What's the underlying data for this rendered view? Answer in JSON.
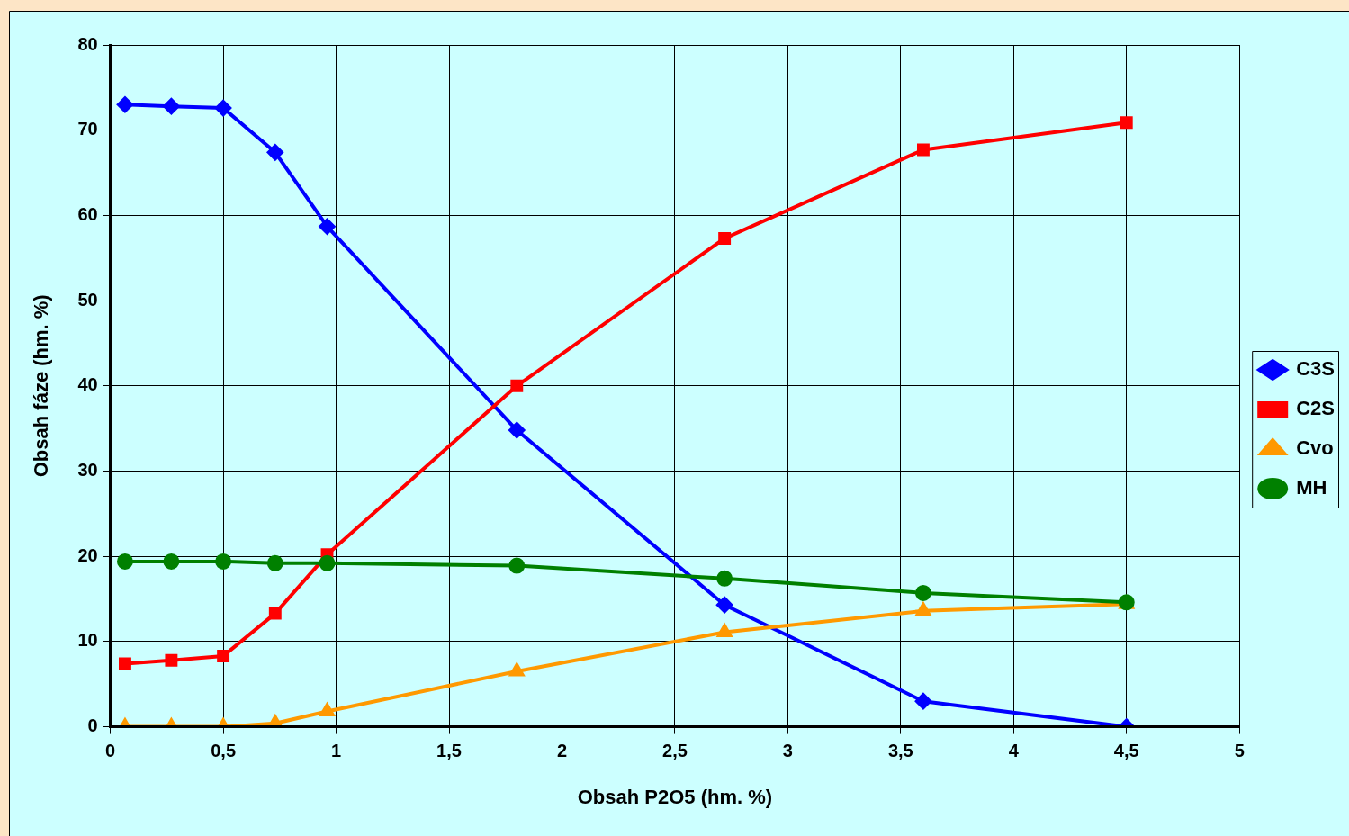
{
  "chart_data": {
    "type": "line",
    "xlabel": "Obsah P2O5 (hm. %)",
    "ylabel": "Obsah fáze (hm. %)",
    "x": [
      0.065,
      0.27,
      0.5,
      0.73,
      0.96,
      1.8,
      2.72,
      3.6,
      4.5
    ],
    "series": [
      {
        "name": "C3S",
        "color": "#0000ff",
        "marker": "diamond",
        "values": [
          73,
          72.8,
          72.6,
          67.4,
          58.7,
          34.8,
          14.3,
          3,
          0
        ]
      },
      {
        "name": "C2S",
        "color": "#ff0000",
        "marker": "square",
        "values": [
          7.4,
          7.8,
          8.3,
          13.3,
          20.2,
          40,
          57.3,
          67.7,
          70.9
        ]
      },
      {
        "name": "Cvo",
        "color": "#ff9900",
        "marker": "triangle",
        "values": [
          0,
          0,
          0,
          0.4,
          1.8,
          6.5,
          11.1,
          13.6,
          14.4
        ]
      },
      {
        "name": "MH",
        "color": "#008000",
        "marker": "circle",
        "values": [
          19.4,
          19.4,
          19.4,
          19.2,
          19.2,
          18.9,
          17.4,
          15.7,
          14.6
        ]
      }
    ],
    "xlim": [
      0,
      5
    ],
    "xticks": [
      0,
      {
        "value": 0.5,
        "label": "0,5"
      },
      1,
      {
        "value": 1.5,
        "label": "1,5"
      },
      2,
      {
        "value": 2.5,
        "label": "2,5"
      },
      3,
      {
        "value": 3.5,
        "label": "3,5"
      },
      4,
      {
        "value": 4.5,
        "label": "4,5"
      },
      5
    ],
    "ylim": [
      0,
      80
    ],
    "yticks": [
      0,
      10,
      20,
      30,
      40,
      50,
      60,
      70,
      80
    ],
    "grid": true,
    "legend": "right",
    "line_style": "solid"
  }
}
